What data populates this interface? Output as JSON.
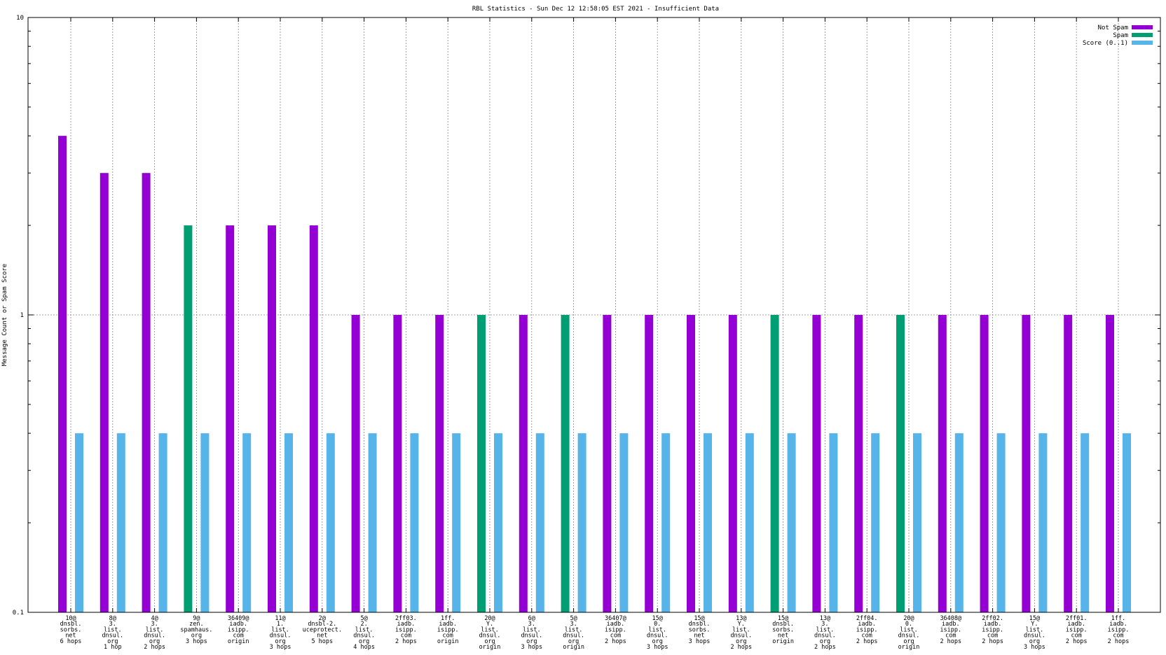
{
  "chart_data": {
    "type": "bar",
    "title": "RBL Statistics - Sun Dec 12 12:58:05 EST 2021 - Insufficient Data",
    "ylabel": "Message Count or Spam Score",
    "xlabel": "",
    "yscale": "log",
    "ylim": [
      0.1,
      10
    ],
    "yticks": [
      "0.1",
      "1",
      "10"
    ],
    "grid": true,
    "legend_position": "top-right",
    "categories": [
      [
        "10@",
        "dnsbl.",
        "sorbs.",
        "net",
        "6 hops"
      ],
      [
        "8@",
        "3.",
        "list.",
        "dnsul.",
        "org",
        "1 hop"
      ],
      [
        "4@",
        "3.",
        "list.",
        "dnsul.",
        "org",
        "2 hops"
      ],
      [
        "9@",
        "zen.",
        "spamhaus.",
        "org",
        "3 hops"
      ],
      [
        "36409@",
        "iadb.",
        "isipp.",
        "com",
        "origin"
      ],
      [
        "11@",
        "1.",
        "list.",
        "dnsul.",
        "org",
        "3 hops"
      ],
      [
        "2@",
        "dnsbl-2.",
        "uceprotect.",
        "net",
        "5 hops"
      ],
      [
        "5@",
        "2.",
        "list.",
        "dnsul.",
        "org",
        "4 hops"
      ],
      [
        "2ff03.",
        "iadb.",
        "isipp.",
        "com",
        "2 hops"
      ],
      [
        "1ff.",
        "iadb.",
        "isipp.",
        "com",
        "origin"
      ],
      [
        "20@",
        "Y.",
        "list.",
        "dnsul.",
        "org",
        "origin"
      ],
      [
        "6@",
        "3.",
        "list.",
        "dnsul.",
        "org",
        "3 hops"
      ],
      [
        "5@",
        "3.",
        "list.",
        "dnsul.",
        "org",
        "origin"
      ],
      [
        "36407@",
        "iadb.",
        "isipp.",
        "com",
        "2 hops"
      ],
      [
        "15@",
        "0.",
        "list.",
        "dnsul.",
        "org",
        "3 hops"
      ],
      [
        "15@",
        "dnsbl.",
        "sorbs.",
        "net",
        "3 hops"
      ],
      [
        "13@",
        "Y.",
        "list.",
        "dnsul.",
        "org",
        "2 hops"
      ],
      [
        "15@",
        "dnsbl.",
        "sorbs.",
        "net",
        "origin"
      ],
      [
        "13@",
        "3.",
        "list.",
        "dnsul.",
        "org",
        "2 hops"
      ],
      [
        "2ff04.",
        "iadb.",
        "isipp.",
        "com",
        "2 hops"
      ],
      [
        "20@",
        "0.",
        "list.",
        "dnsul.",
        "org",
        "origin"
      ],
      [
        "36408@",
        "iadb.",
        "isipp.",
        "com",
        "2 hops"
      ],
      [
        "2ff02.",
        "iadb.",
        "isipp.",
        "com",
        "2 hops"
      ],
      [
        "15@",
        "Y.",
        "list.",
        "dnsul.",
        "org",
        "3 hops"
      ],
      [
        "2ff01.",
        "iadb.",
        "isipp.",
        "com",
        "2 hops"
      ],
      [
        "1ff.",
        "iadb.",
        "isipp.",
        "com",
        "2 hops"
      ]
    ],
    "series": [
      {
        "name": "Not Spam",
        "color": "#9400d3",
        "values": [
          4,
          3,
          3,
          null,
          2,
          2,
          2,
          1,
          1,
          1,
          null,
          1,
          null,
          1,
          1,
          1,
          1,
          null,
          1,
          1,
          null,
          1,
          1,
          1,
          1,
          1
        ]
      },
      {
        "name": "Spam",
        "color": "#009e73",
        "values": [
          null,
          null,
          null,
          2,
          null,
          null,
          null,
          null,
          null,
          null,
          1,
          null,
          1,
          null,
          null,
          null,
          null,
          1,
          null,
          null,
          1,
          null,
          null,
          null,
          null,
          null
        ]
      },
      {
        "name": "Score (0..1)",
        "color": "#56b4e9",
        "values": [
          0.4,
          0.4,
          0.4,
          0.4,
          0.4,
          0.4,
          0.4,
          0.4,
          0.4,
          0.4,
          0.4,
          0.4,
          0.4,
          0.4,
          0.4,
          0.4,
          0.4,
          0.4,
          0.4,
          0.4,
          0.4,
          0.4,
          0.4,
          0.4,
          0.4,
          0.4
        ]
      }
    ]
  }
}
